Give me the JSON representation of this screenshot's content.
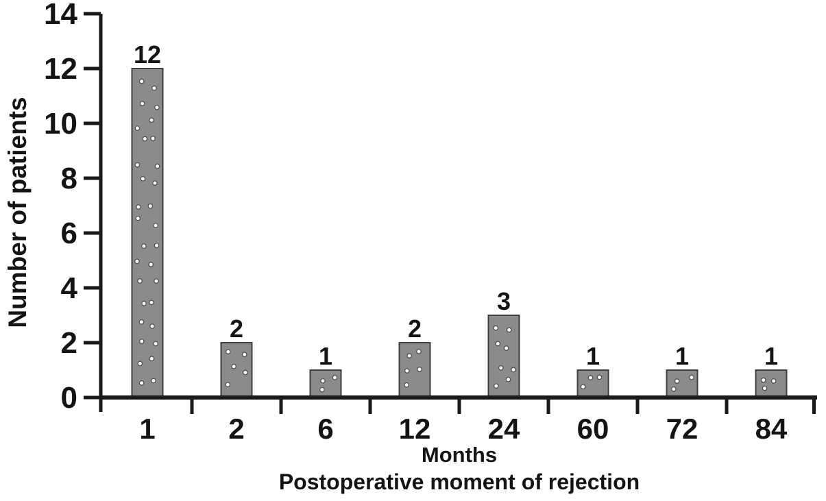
{
  "chart_data": {
    "type": "bar",
    "title": "",
    "categories": [
      "1",
      "2",
      "6",
      "12",
      "24",
      "60",
      "72",
      "84"
    ],
    "values": [
      12,
      2,
      1,
      2,
      3,
      1,
      1,
      1
    ],
    "bar_value_labels": [
      "12",
      "2",
      "1",
      "2",
      "3",
      "1",
      "1",
      "1"
    ],
    "xlabel": "Months",
    "xlabel_line2": "Postoperative moment of rejection",
    "ylabel": "Number of patients",
    "ylim": [
      0,
      14
    ],
    "yticks": [
      0,
      2,
      4,
      6,
      8,
      10,
      12,
      14
    ],
    "grid": false,
    "legend_position": "none",
    "bar_pattern": "polka-dot",
    "colors": {
      "background": "#ffffff",
      "bar_fill": "#8b8b8b",
      "bar_border": "#3f3f3f",
      "dot_fill": "#ffffff",
      "dot_ring": "#4f4f4f",
      "axis": "#1a1a1a",
      "text": "#141414"
    }
  }
}
